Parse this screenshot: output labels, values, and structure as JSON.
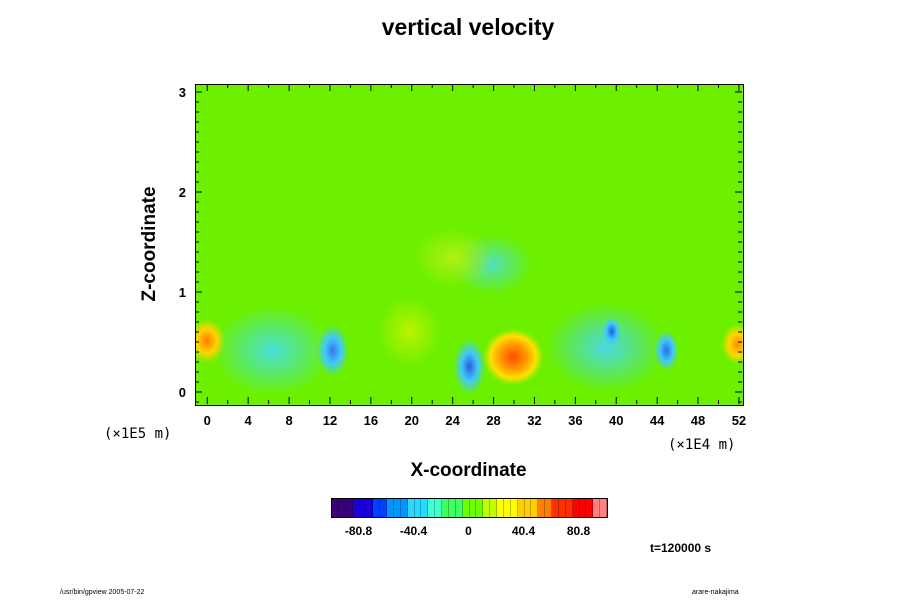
{
  "chart_data": {
    "type": "heatmap",
    "title": "vertical velocity",
    "xlabel": "X-coordinate",
    "ylabel": "Z-coordinate",
    "x_unit": "(×1E4 m)",
    "y_unit": "(×1E5 m)",
    "xlim": [
      -1.2,
      52.3
    ],
    "ylim": [
      -0.12,
      3.08
    ],
    "x_ticks": [
      "0",
      "4",
      "8",
      "12",
      "16",
      "20",
      "24",
      "28",
      "32",
      "36",
      "40",
      "44",
      "48",
      "52"
    ],
    "y_ticks": [
      "0",
      "1",
      "2",
      "3"
    ],
    "colorbar": {
      "ticks": [
        {
          "label": "-80.8",
          "value": -80.8
        },
        {
          "label": "-40.4",
          "value": -40.4
        },
        {
          "label": "0",
          "value": 0
        },
        {
          "label": "40.4",
          "value": 40.4
        },
        {
          "label": "80.8",
          "value": 80.8
        }
      ],
      "range": [
        -101,
        101
      ],
      "colors": [
        "#3a007a",
        "#1a00d8",
        "#0040ff",
        "#0096ff",
        "#28d8ff",
        "#40ffd0",
        "#40ff60",
        "#70ff00",
        "#c0ff00",
        "#ffff00",
        "#ffd000",
        "#ff8000",
        "#ff3000",
        "#ff0000",
        "#ff8080"
      ]
    },
    "annotation_time": "t=120000 s"
  },
  "footer": {
    "left": "/usr/bin/gpview 2005-07-22",
    "right": "arare-nakajima"
  }
}
